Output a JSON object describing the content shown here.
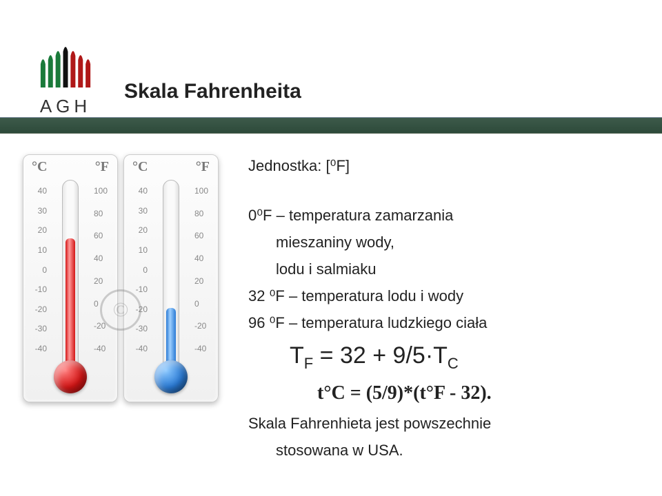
{
  "logo": {
    "text": "AGH",
    "colors": [
      "#1a7a3a",
      "#1a7a3a",
      "#1a7a3a",
      "#111",
      "#b01818",
      "#b01818",
      "#b01818"
    ]
  },
  "title": "Skala Fahrenheita",
  "stripe_color": "#33503f",
  "thermometers": {
    "left": {
      "c_label": "°C",
      "f_label": "°F",
      "c_scale": [
        "40",
        "30",
        "20",
        "10",
        "0",
        "-10",
        "-20",
        "-30",
        "-40"
      ],
      "f_scale": [
        "100",
        "80",
        "60",
        "40",
        "20",
        "0",
        "-20",
        "-40"
      ],
      "fluid_color": "#d31616",
      "fluid_height_pct": 68,
      "bulb_color": "radial-gradient(circle at 35% 30%, #ff7a7a, #d31616 55%, #8a0c0c)"
    },
    "right": {
      "c_label": "°C",
      "f_label": "°F",
      "c_scale": [
        "40",
        "30",
        "20",
        "10",
        "0",
        "-10",
        "-20",
        "-30",
        "-40"
      ],
      "f_scale": [
        "100",
        "80",
        "60",
        "40",
        "20",
        "0",
        "-20",
        "-40"
      ],
      "fluid_color": "#2a7ad4",
      "fluid_height_pct": 30,
      "bulb_color": "radial-gradient(circle at 35% 30%, #8ac8ff, #2a7ad4 55%, #153f6e)"
    }
  },
  "text": {
    "unit_line": "Jednostka:  [⁰F]",
    "l1a": "0⁰F – temperatura  zamarzania",
    "l1b": "mieszaniny wody,",
    "l1c": "lodu i salmiaku",
    "l2": "32 ⁰F – temperatura lodu i wody",
    "l3": "96 ⁰F – temperatura ludzkiego ciała",
    "formula1_html": "T<sub>F</sub> = 32 + 9/5·T<sub>C</sub>",
    "formula2": "t°C = (5/9)*(t°F - 32).",
    "footer_a": "Skala Fahrenhieta jest powszechnie",
    "footer_b": "stosowana w USA."
  },
  "colors": {
    "text": "#222222",
    "background": "#ffffff"
  }
}
